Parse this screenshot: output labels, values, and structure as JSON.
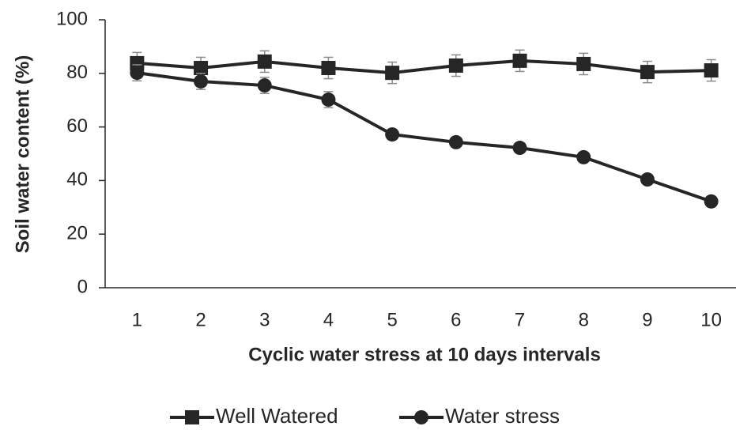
{
  "chart_data": {
    "type": "line",
    "x_label": "Cyclic water stress at 10 days intervals",
    "y_label": "Soil water content (%)",
    "categories": [
      "1",
      "2",
      "3",
      "4",
      "5",
      "6",
      "7",
      "8",
      "9",
      "10"
    ],
    "series": [
      {
        "name": "Well Watered",
        "color": "#262626",
        "marker": "square",
        "values": [
          83.8,
          82.0,
          84.4,
          82.0,
          80.2,
          82.9,
          84.7,
          83.5,
          80.5,
          81.1
        ],
        "errors": [
          4,
          4,
          4,
          4,
          4,
          4,
          4,
          4,
          4,
          4
        ]
      },
      {
        "name": "Water stress",
        "color": "#262626",
        "marker": "circle",
        "values": [
          80.2,
          77.0,
          75.5,
          70.2,
          57.2,
          54.3,
          52.2,
          48.7,
          40.4,
          32.2
        ],
        "errors": [
          3,
          3,
          3,
          3,
          1,
          1,
          1,
          1,
          1,
          1
        ]
      }
    ],
    "ylim": [
      0,
      100
    ],
    "yticks": [
      0,
      20,
      40,
      60,
      80,
      100
    ],
    "grid": false,
    "legend": "bottom"
  }
}
